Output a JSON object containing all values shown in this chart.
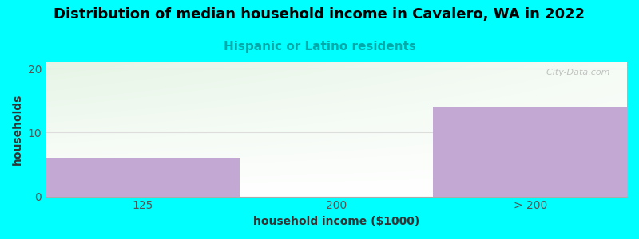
{
  "title": "Distribution of median household income in Cavalero, WA in 2022",
  "subtitle": "Hispanic or Latino residents",
  "categories": [
    "125",
    "200",
    "> 200"
  ],
  "values": [
    6,
    0,
    14
  ],
  "bar_color": "#c4a8d4",
  "xlabel": "household income ($1000)",
  "ylabel": "households",
  "ylim": [
    0,
    21
  ],
  "yticks": [
    0,
    10,
    20
  ],
  "background_color": "#00ffff",
  "title_fontsize": 13,
  "subtitle_color": "#00aaaa",
  "subtitle_fontsize": 11,
  "watermark": "  City-Data.com",
  "grid_color": "#dddddd",
  "tick_color": "#555555",
  "label_fontsize": 10,
  "tick_fontsize": 10
}
